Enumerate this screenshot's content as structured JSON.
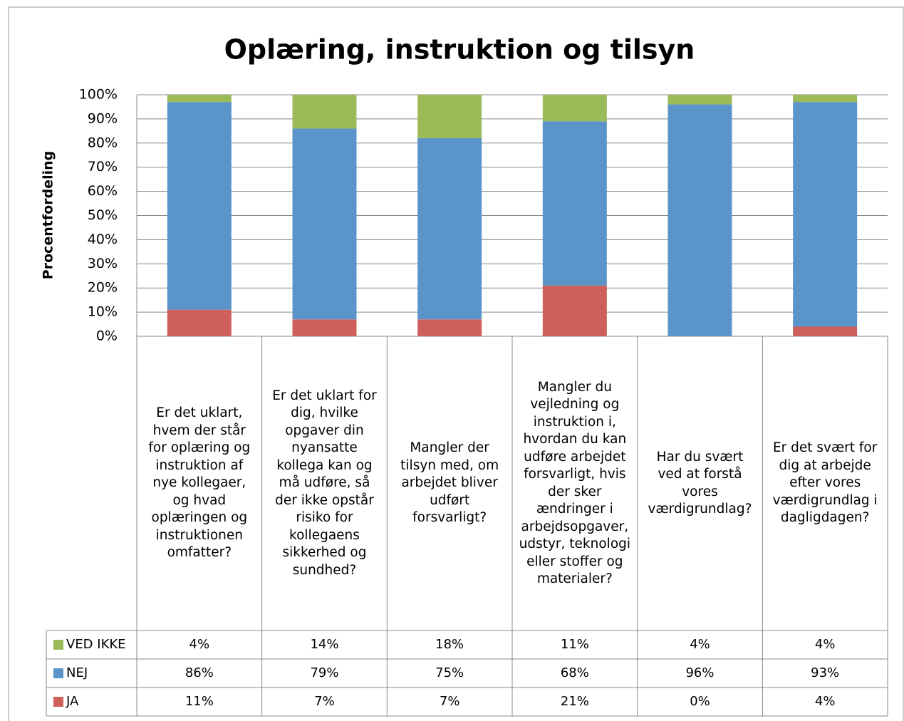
{
  "chart_data": {
    "type": "stacked_bar",
    "title": "Oplæring, instruktion og tilsyn",
    "ylabel": "Procentfordeling",
    "categories": [
      "Er det uklart, hvem der står for oplæring og instruktion af nye kollegaer, og hvad oplæringen og instruktionen omfatter?",
      "Er det uklart for dig, hvilke opgaver din nyansatte kollega kan og må udføre, så der ikke opstår risiko for kollegaens sikkerhed og sundhed?",
      "Mangler der tilsyn med, om arbejdet bliver udført forsvarligt?",
      "Mangler du vejledning og instruktion i, hvordan du kan udføre arbejdet forsvarligt, hvis der sker ændringer i arbejdsopgaver, udstyr, teknologi eller stoffer og materialer?",
      "Har du svært ved at forstå vores værdigrundlag?",
      "Er det svært for dig at arbejde efter vores værdigrundlag i dagligdagen?"
    ],
    "series": [
      {
        "name": "VED IKKE",
        "color": "#9bbb59",
        "values": [
          4,
          14,
          18,
          11,
          4,
          4
        ],
        "value_labels": [
          "4%",
          "14%",
          "18%",
          "11%",
          "4%",
          "4%"
        ]
      },
      {
        "name": "NEJ",
        "color": "#5b94c9",
        "values": [
          86,
          79,
          75,
          68,
          96,
          93
        ],
        "value_labels": [
          "86%",
          "79%",
          "75%",
          "68%",
          "96%",
          "93%"
        ]
      },
      {
        "name": "JA",
        "color": "#cf5f5a",
        "values": [
          11,
          7,
          7,
          21,
          0,
          4
        ],
        "value_labels": [
          "11%",
          "7%",
          "7%",
          "21%",
          "0%",
          "4%"
        ]
      }
    ],
    "ylim": [
      0,
      100
    ],
    "yticks": [
      {
        "value": 0,
        "label": "0%"
      },
      {
        "value": 10,
        "label": "10%"
      },
      {
        "value": 20,
        "label": "20%"
      },
      {
        "value": 30,
        "label": "30%"
      },
      {
        "value": 40,
        "label": "40%"
      },
      {
        "value": 50,
        "label": "50%"
      },
      {
        "value": 60,
        "label": "60%"
      },
      {
        "value": 70,
        "label": "70%"
      },
      {
        "value": 80,
        "label": "80%"
      },
      {
        "value": 90,
        "label": "90%"
      },
      {
        "value": 100,
        "label": "100%"
      }
    ],
    "grid": true
  }
}
